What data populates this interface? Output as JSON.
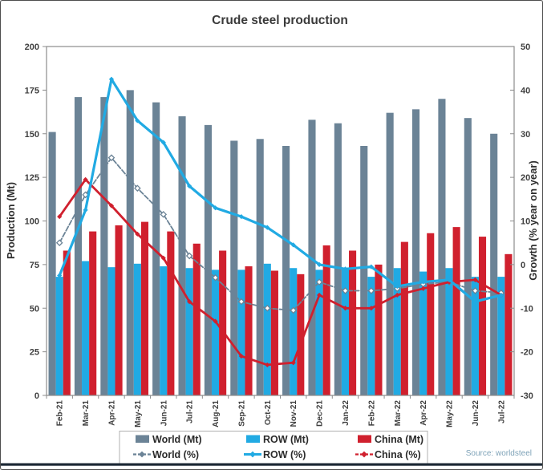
{
  "title": "Crude steel production",
  "source": "Source: worldsteel",
  "colors": {
    "world": "#6b8396",
    "row": "#21aae3",
    "china": "#d0202e",
    "plot_border": "#8c8c8c",
    "bottom_rule": "#1c2835",
    "legend_border": "#b0b0b0"
  },
  "legend": {
    "items": [
      {
        "label": "World (Mt)",
        "type": "bar",
        "color_key": "world"
      },
      {
        "label": "ROW (Mt)",
        "type": "bar",
        "color_key": "row"
      },
      {
        "label": "China (Mt)",
        "type": "bar",
        "color_key": "china"
      },
      {
        "label": "World (%)",
        "type": "line",
        "color_key": "world"
      },
      {
        "label": "ROW (%)",
        "type": "line",
        "color_key": "row"
      },
      {
        "label": "China (%)",
        "type": "line",
        "color_key": "china"
      }
    ]
  },
  "chart_data": {
    "type": "combo bar+line, dual axis",
    "categories": [
      "Feb-21",
      "Mar-21",
      "Apr-21",
      "May-21",
      "Jun-21",
      "Jul-21",
      "Aug-21",
      "Sep-21",
      "Oct-21",
      "Nov-21",
      "Dec-21",
      "Jan-22",
      "Feb-22",
      "Mar-22",
      "Apr-22",
      "May-22",
      "Jun-22",
      "Jul-22"
    ],
    "left_axis": {
      "label": "Production (Mt)",
      "min": 0,
      "max": 200,
      "ticks": [
        0,
        25,
        50,
        75,
        100,
        125,
        150,
        175,
        200
      ]
    },
    "right_axis": {
      "label": "Growth (% year on year)",
      "min": -30,
      "max": 50,
      "ticks": [
        -30,
        -20,
        -10,
        0,
        10,
        20,
        30,
        40,
        50
      ]
    },
    "bar_series": [
      {
        "name": "World (Mt)",
        "color_key": "world",
        "values": [
          151,
          171,
          171,
          175,
          168,
          160,
          155,
          146,
          147,
          143,
          158,
          156,
          143,
          162,
          164,
          170,
          159,
          150
        ]
      },
      {
        "name": "ROW (Mt)",
        "color_key": "row",
        "values": [
          68,
          77,
          73.5,
          75.5,
          74,
          73,
          72,
          72,
          75.5,
          73,
          72,
          73,
          68,
          73,
          71,
          73,
          68,
          68
        ]
      },
      {
        "name": "China (Mt)",
        "color_key": "china",
        "values": [
          83,
          94,
          97.5,
          99.5,
          94,
          87,
          83,
          74,
          71.5,
          69.5,
          86,
          83,
          75,
          88,
          93,
          96.5,
          91,
          81
        ]
      }
    ],
    "line_series": [
      {
        "name": "World (%)",
        "color_key": "world",
        "axis": "right",
        "dash": "6,2.5",
        "width": 1.8,
        "marker": "open-diamond",
        "values": [
          5,
          16,
          24.5,
          17.5,
          11.5,
          2,
          -3,
          -8.5,
          -10,
          -10.5,
          -4,
          -6,
          -6,
          -5.5,
          -4.5,
          -4,
          -6,
          -6.5
        ]
      },
      {
        "name": "China (%)",
        "color_key": "china",
        "axis": "right",
        "dash": "",
        "width": 2.8,
        "marker": "diamond",
        "values": [
          11,
          19.5,
          13.5,
          7,
          1.5,
          -8.5,
          -13,
          -21,
          -23,
          -22.5,
          -7,
          -10,
          -10,
          -7,
          -5.5,
          -4,
          -3.5,
          -7
        ]
      },
      {
        "name": "ROW (%)",
        "color_key": "row",
        "axis": "right",
        "dash": "",
        "width": 3.2,
        "marker": "diamond",
        "values": [
          -2.5,
          12.5,
          42.5,
          33,
          28,
          18,
          13,
          11,
          8.5,
          4.5,
          0,
          -1,
          -0.5,
          -5,
          -4,
          -3.5,
          -8.5,
          -7
        ]
      }
    ],
    "legend_position": "bottom",
    "grid": false
  }
}
